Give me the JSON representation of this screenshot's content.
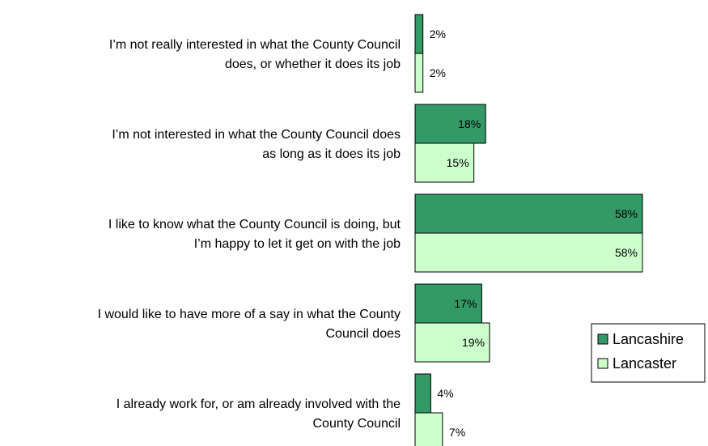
{
  "chart_data": {
    "type": "bar",
    "orientation": "horizontal",
    "categories": [
      [
        "I’m not really interested in what the County Council",
        "does, or whether it does its job"
      ],
      [
        "I’m not interested in what the County Council does",
        "as long as it does its job"
      ],
      [
        "I like to know what the County Council is doing, but",
        "I’m happy to let it get on with the job"
      ],
      [
        "I would like to have more of a say in what the County",
        "Council does"
      ],
      [
        "I already work for, or am already involved with the",
        "County Council"
      ]
    ],
    "series": [
      {
        "name": "Lancashire",
        "color": "#339966",
        "values": [
          2,
          18,
          58,
          17,
          4
        ],
        "labels": [
          "2%",
          "18%",
          "58%",
          "17%",
          "4%"
        ]
      },
      {
        "name": "Lancaster",
        "color": "#ccffcc",
        "values": [
          2,
          15,
          58,
          19,
          7
        ],
        "labels": [
          "2%",
          "15%",
          "58%",
          "19%",
          "7%"
        ]
      }
    ],
    "xlim": [
      0,
      58
    ],
    "grid": false,
    "legend_position": "right"
  }
}
